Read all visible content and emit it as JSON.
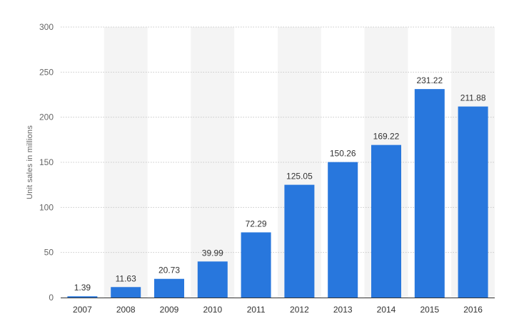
{
  "chart_data": {
    "type": "bar",
    "title": "",
    "xlabel": "",
    "ylabel": "Unit sales in millions",
    "categories": [
      "2007",
      "2008",
      "2009",
      "2010",
      "2011",
      "2012",
      "2013",
      "2014",
      "2015",
      "2016"
    ],
    "values": [
      1.39,
      11.63,
      20.73,
      39.99,
      72.29,
      125.05,
      150.26,
      169.22,
      231.22,
      211.88
    ],
    "value_labels": [
      "1.39",
      "11.63",
      "20.73",
      "39.99",
      "72.29",
      "125.05",
      "150.26",
      "169.22",
      "231.22",
      "211.88"
    ],
    "ylim": [
      0,
      300
    ],
    "yticks": [
      "0",
      "50",
      "100",
      "150",
      "200",
      "250",
      "300"
    ],
    "grid": true,
    "legend": "none",
    "colors": {
      "bar": "#2877dd",
      "band": "#f4f4f4",
      "grid": "#c8c8c8",
      "text": "#666666",
      "value_text": "#333333"
    }
  }
}
